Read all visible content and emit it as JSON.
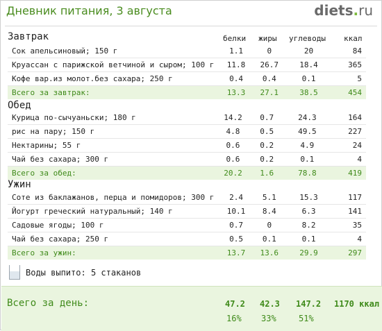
{
  "title": "Дневник питания, 3 августа",
  "brand": {
    "name": "diets",
    "tld": "ru"
  },
  "columns": [
    "белки",
    "жиры",
    "углеводы",
    "ккал"
  ],
  "meals": [
    {
      "name": "Завтрак",
      "items": [
        {
          "name": "Сок апельсиновый; 150 г",
          "p": "1.1",
          "f": "0",
          "c": "20",
          "k": "84"
        },
        {
          "name": "Круассан с парижской ветчиной и сыром; 100 г",
          "p": "11.8",
          "f": "26.7",
          "c": "18.4",
          "k": "365"
        },
        {
          "name": "Кофе вар.из молот.без сахара; 250 г",
          "p": "0.4",
          "f": "0.4",
          "c": "0.1",
          "k": "5"
        }
      ],
      "total": {
        "label": "Всего за завтрак:",
        "p": "13.3",
        "f": "27.1",
        "c": "38.5",
        "k": "454"
      }
    },
    {
      "name": "Обед",
      "items": [
        {
          "name": "Курица по-сычуаньски; 180 г",
          "p": "14.2",
          "f": "0.7",
          "c": "24.3",
          "k": "164"
        },
        {
          "name": "рис на пару; 150 г",
          "p": "4.8",
          "f": "0.5",
          "c": "49.5",
          "k": "227"
        },
        {
          "name": "Нектарины; 55 г",
          "p": "0.6",
          "f": "0.2",
          "c": "4.9",
          "k": "24"
        },
        {
          "name": "Чай без сахара; 300 г",
          "p": "0.6",
          "f": "0.2",
          "c": "0.1",
          "k": "4"
        }
      ],
      "total": {
        "label": "Всего за обед:",
        "p": "20.2",
        "f": "1.6",
        "c": "78.8",
        "k": "419"
      }
    },
    {
      "name": "Ужин",
      "items": [
        {
          "name": "Соте из баклажанов, перца и помидоров; 300 г",
          "p": "2.4",
          "f": "5.1",
          "c": "15.3",
          "k": "117"
        },
        {
          "name": "Йогурт греческий натуральный; 140 г",
          "p": "10.1",
          "f": "8.4",
          "c": "6.3",
          "k": "141"
        },
        {
          "name": "Садовые ягоды; 100 г",
          "p": "0.7",
          "f": "0",
          "c": "8.2",
          "k": "35"
        },
        {
          "name": "Чай без сахара; 250 г",
          "p": "0.5",
          "f": "0.1",
          "c": "0.1",
          "k": "4"
        }
      ],
      "total": {
        "label": "Всего за ужин:",
        "p": "13.7",
        "f": "13.6",
        "c": "29.9",
        "k": "297"
      }
    }
  ],
  "water": {
    "label": "Воды выпито:",
    "value": "5 стаканов"
  },
  "day_total": {
    "label": "Всего за день:",
    "p": "47.2",
    "f": "42.3",
    "c": "147.2",
    "k": "1170 ккал",
    "p_pct": "16%",
    "f_pct": "33%",
    "c_pct": "51%"
  },
  "colors": {
    "accent": "#3f8a1a",
    "total_bg": "#eaf5df"
  }
}
